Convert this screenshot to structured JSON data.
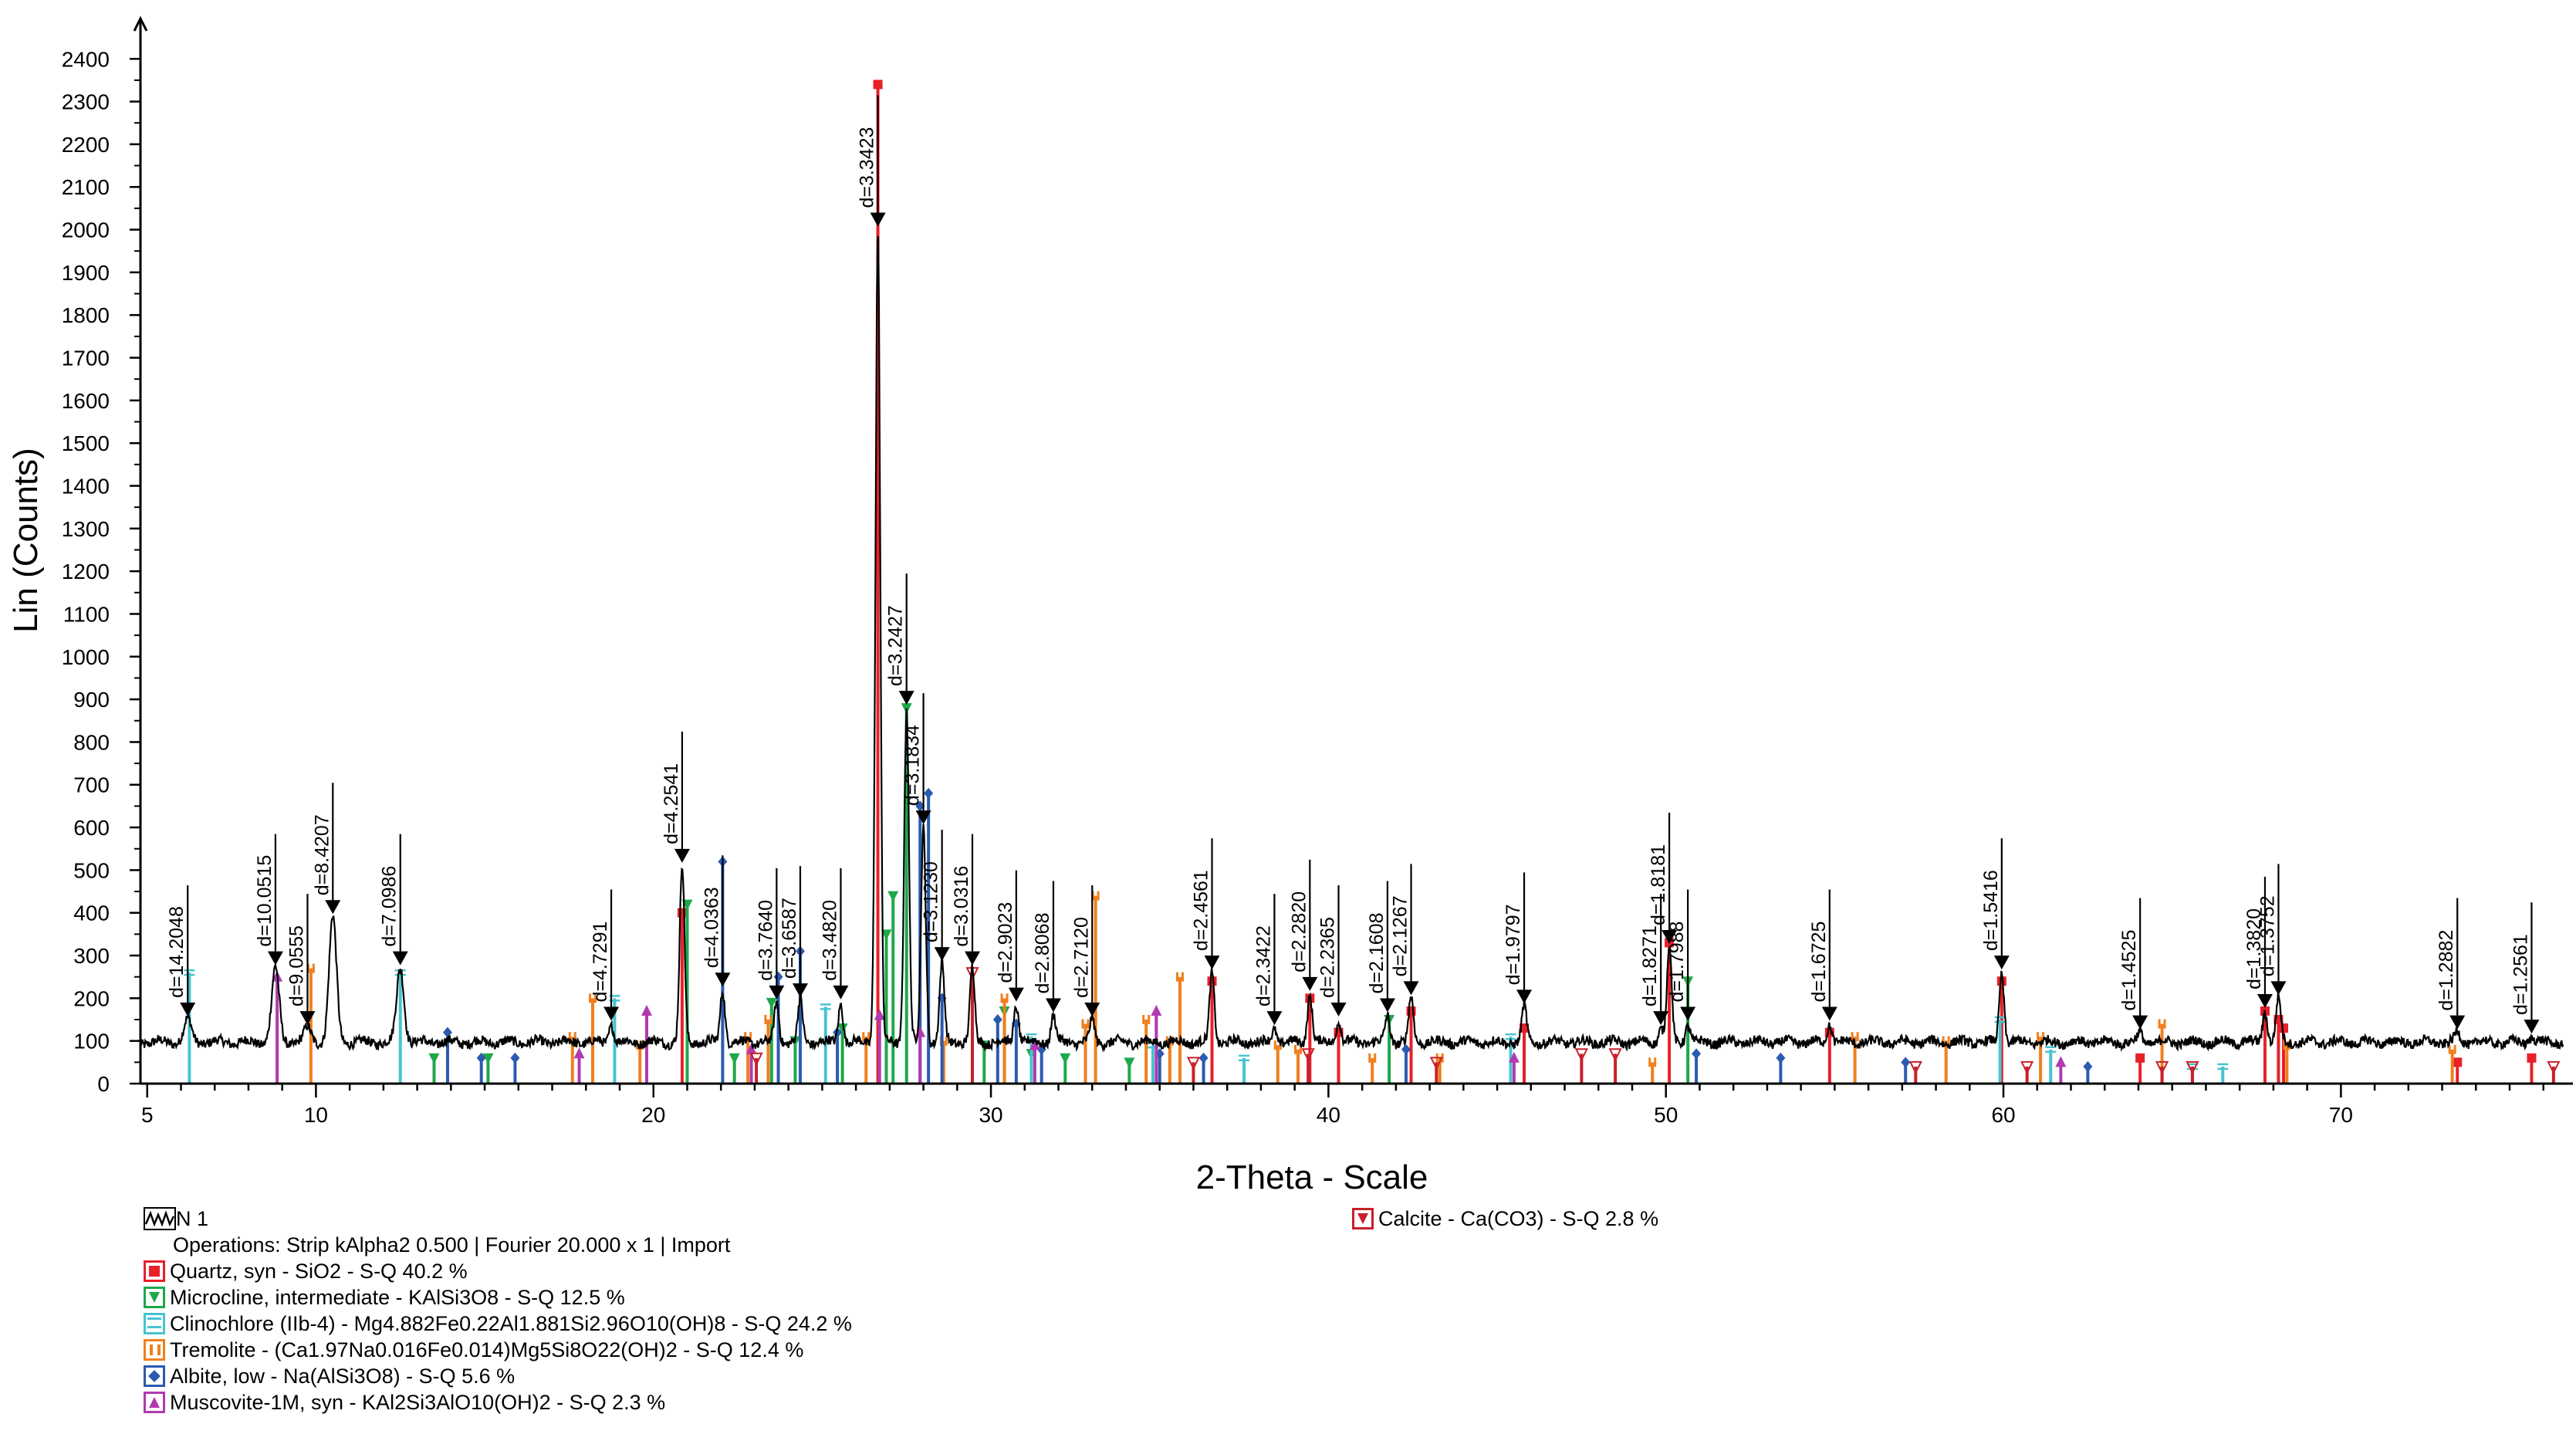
{
  "chart_data": {
    "type": "line",
    "xlabel": "2-Theta - Scale",
    "ylabel": "Lin (Counts)",
    "xlim": [
      4.8,
      76.6
    ],
    "ylim": [
      0,
      2480
    ],
    "x_ticks": [
      5,
      10,
      20,
      30,
      40,
      50,
      60,
      70
    ],
    "x_ticklabels": [
      "5",
      "10",
      "20",
      "30",
      "40",
      "50",
      "60",
      "70"
    ],
    "y_ticks": [
      0,
      100,
      200,
      300,
      400,
      500,
      600,
      700,
      800,
      900,
      1000,
      1100,
      1200,
      1300,
      1400,
      1500,
      1600,
      1700,
      1800,
      1900,
      2000,
      2100,
      2200,
      2300,
      2400
    ],
    "y_ticklabels": [
      "0",
      "100",
      "200",
      "300",
      "400",
      "500",
      "600",
      "700",
      "800",
      "900",
      "1000",
      "1100",
      "1200",
      "1300",
      "1400",
      "1500",
      "1600",
      "1700",
      "1800",
      "1900",
      "2000",
      "2100",
      "2200",
      "2300",
      "2400"
    ],
    "baseline_counts": 97,
    "series": [
      {
        "name": "N 1",
        "color": "#000000"
      }
    ],
    "peaks": [
      {
        "x": 6.2,
        "y": 150,
        "d": "d=14.2048"
      },
      {
        "x": 8.8,
        "y": 270,
        "d": "d=10.0515"
      },
      {
        "x": 9.75,
        "y": 130,
        "d": "d=9.0555"
      },
      {
        "x": 10.5,
        "y": 390,
        "d": "d=8.4207"
      },
      {
        "x": 12.5,
        "y": 270,
        "d": "d=7.0986"
      },
      {
        "x": 18.75,
        "y": 140,
        "d": "d=4.7291"
      },
      {
        "x": 20.85,
        "y": 510,
        "d": "d=4.2541"
      },
      {
        "x": 22.05,
        "y": 220,
        "d": "d=4.0363"
      },
      {
        "x": 23.65,
        "y": 190,
        "d": "d=3.7640"
      },
      {
        "x": 24.35,
        "y": 195,
        "d": "d=3.6587"
      },
      {
        "x": 25.55,
        "y": 190,
        "d": "d=3.4820"
      },
      {
        "x": 26.65,
        "y": 2000,
        "d": "d=3.3423"
      },
      {
        "x": 27.5,
        "y": 880,
        "d": "d=3.2427"
      },
      {
        "x": 28.0,
        "y": 600,
        "d": "d=3.1834"
      },
      {
        "x": 28.55,
        "y": 280,
        "d": "d=3.1230"
      },
      {
        "x": 29.45,
        "y": 270,
        "d": "d=3.0316"
      },
      {
        "x": 30.75,
        "y": 185,
        "d": "d=2.9023"
      },
      {
        "x": 31.85,
        "y": 160,
        "d": "d=2.8068"
      },
      {
        "x": 33.0,
        "y": 150,
        "d": "d=2.7120"
      },
      {
        "x": 36.55,
        "y": 260,
        "d": "d=2.4561"
      },
      {
        "x": 38.4,
        "y": 130,
        "d": "d=2.3422"
      },
      {
        "x": 39.45,
        "y": 210,
        "d": "d=2.2820"
      },
      {
        "x": 40.3,
        "y": 150,
        "d": "d=2.2365"
      },
      {
        "x": 41.75,
        "y": 160,
        "d": "d=2.1608"
      },
      {
        "x": 42.45,
        "y": 200,
        "d": "d=2.1267"
      },
      {
        "x": 45.8,
        "y": 180,
        "d": "d=1.9797"
      },
      {
        "x": 49.85,
        "y": 130,
        "d": "d=1.8271"
      },
      {
        "x": 50.1,
        "y": 320,
        "d": "d=1.8181"
      },
      {
        "x": 50.65,
        "y": 140,
        "d": "d=1.7988"
      },
      {
        "x": 54.85,
        "y": 140,
        "d": "d=1.6725"
      },
      {
        "x": 59.95,
        "y": 260,
        "d": "d=1.5416"
      },
      {
        "x": 64.05,
        "y": 120,
        "d": "d=1.4525"
      },
      {
        "x": 67.75,
        "y": 170,
        "d": "d=1.3820"
      },
      {
        "x": 68.15,
        "y": 200,
        "d": "d=1.3752"
      },
      {
        "x": 73.45,
        "y": 120,
        "d": "d=1.2882"
      },
      {
        "x": 75.65,
        "y": 110,
        "d": "d=1.2561"
      }
    ],
    "reference_phases": [
      {
        "name": "Quartz, syn - SiO2 - S-Q 40.2 %",
        "color": "#e8202a",
        "marker": "square",
        "sticks": [
          [
            20.85,
            400
          ],
          [
            26.65,
            2340
          ],
          [
            36.55,
            240
          ],
          [
            39.45,
            200
          ],
          [
            40.3,
            120
          ],
          [
            42.45,
            170
          ],
          [
            45.8,
            130
          ],
          [
            50.1,
            330
          ],
          [
            54.85,
            120
          ],
          [
            59.95,
            240
          ],
          [
            64.05,
            60
          ],
          [
            67.75,
            170
          ],
          [
            68.15,
            150
          ],
          [
            68.3,
            130
          ],
          [
            73.45,
            50
          ],
          [
            75.65,
            60
          ]
        ]
      },
      {
        "name": "Microcline, intermediate - KAlSi3O8 - S-Q 12.5 %",
        "color": "#1ea84a",
        "marker": "tri-down",
        "sticks": [
          [
            13.5,
            60
          ],
          [
            15.1,
            60
          ],
          [
            21.0,
            420
          ],
          [
            22.4,
            60
          ],
          [
            23.5,
            190
          ],
          [
            24.2,
            100
          ],
          [
            25.6,
            130
          ],
          [
            26.9,
            350
          ],
          [
            27.1,
            440
          ],
          [
            27.5,
            880
          ],
          [
            29.8,
            90
          ],
          [
            30.4,
            170
          ],
          [
            31.2,
            70
          ],
          [
            32.2,
            60
          ],
          [
            34.1,
            50
          ],
          [
            41.8,
            150
          ],
          [
            50.65,
            240
          ]
        ]
      },
      {
        "name": "Clinochlore (IIb-4) - Mg4.882Fe0.22Al1.881Si2.96O10(OH)8 - S-Q 24.2 %",
        "color": "#46c4d0",
        "marker": "lines",
        "sticks": [
          [
            6.25,
            260
          ],
          [
            12.5,
            260
          ],
          [
            18.85,
            200
          ],
          [
            25.1,
            180
          ],
          [
            31.2,
            110
          ],
          [
            34.8,
            90
          ],
          [
            37.5,
            60
          ],
          [
            45.4,
            110
          ],
          [
            59.9,
            150
          ],
          [
            61.4,
            80
          ],
          [
            65.6,
            40
          ],
          [
            66.5,
            40
          ]
        ]
      },
      {
        "name": "Tremolite - (Ca1.97Na0.016Fe0.014)Mg5Si8O22(OH)2 - S-Q 12.4 %",
        "color": "#f07f1c",
        "marker": "bars",
        "sticks": [
          [
            9.85,
            270
          ],
          [
            17.6,
            110
          ],
          [
            18.2,
            200
          ],
          [
            19.6,
            90
          ],
          [
            22.8,
            110
          ],
          [
            23.4,
            150
          ],
          [
            26.3,
            110
          ],
          [
            28.6,
            100
          ],
          [
            30.4,
            200
          ],
          [
            32.8,
            140
          ],
          [
            33.1,
            440
          ],
          [
            34.6,
            150
          ],
          [
            35.3,
            100
          ],
          [
            35.6,
            250
          ],
          [
            38.5,
            90
          ],
          [
            39.1,
            80
          ],
          [
            41.3,
            60
          ],
          [
            43.3,
            60
          ],
          [
            49.6,
            50
          ],
          [
            55.6,
            110
          ],
          [
            58.3,
            100
          ],
          [
            61.1,
            110
          ],
          [
            64.7,
            140
          ],
          [
            68.4,
            90
          ],
          [
            73.3,
            80
          ]
        ]
      },
      {
        "name": "Albite, low - Na(AlSi3O8) - S-Q 5.6 %",
        "color": "#2b5bb0",
        "marker": "diamond",
        "sticks": [
          [
            13.9,
            120
          ],
          [
            14.9,
            60
          ],
          [
            15.9,
            60
          ],
          [
            22.05,
            520
          ],
          [
            23.7,
            250
          ],
          [
            24.35,
            310
          ],
          [
            25.45,
            120
          ],
          [
            27.9,
            650
          ],
          [
            28.15,
            680
          ],
          [
            28.55,
            200
          ],
          [
            30.2,
            150
          ],
          [
            30.75,
            140
          ],
          [
            31.5,
            80
          ],
          [
            35.0,
            70
          ],
          [
            36.3,
            60
          ],
          [
            42.3,
            80
          ],
          [
            50.9,
            70
          ],
          [
            53.4,
            60
          ],
          [
            57.1,
            50
          ],
          [
            62.5,
            40
          ]
        ]
      },
      {
        "name": "Muscovite-1M, syn - KAl2Si3AlO10(OH)2 - S-Q 2.3 %",
        "color": "#b03ab0",
        "marker": "tri-up",
        "sticks": [
          [
            8.85,
            250
          ],
          [
            17.8,
            70
          ],
          [
            19.8,
            170
          ],
          [
            22.9,
            80
          ],
          [
            26.7,
            160
          ],
          [
            27.9,
            120
          ],
          [
            31.3,
            90
          ],
          [
            34.9,
            170
          ],
          [
            45.5,
            60
          ],
          [
            61.7,
            50
          ]
        ]
      },
      {
        "name": "Calcite - Ca(CO3) - S-Q 2.8 %",
        "color": "#c8202a",
        "marker": "tri-down-open",
        "sticks": [
          [
            23.05,
            60
          ],
          [
            29.45,
            260
          ],
          [
            36.0,
            50
          ],
          [
            39.4,
            70
          ],
          [
            43.2,
            50
          ],
          [
            47.5,
            70
          ],
          [
            48.5,
            70
          ],
          [
            57.4,
            40
          ],
          [
            60.7,
            40
          ],
          [
            64.7,
            40
          ],
          [
            65.6,
            40
          ],
          [
            76.3,
            40
          ]
        ]
      }
    ]
  },
  "legend": {
    "series_label": "N 1",
    "operations": "Operations: Strip kAlpha2 0.500 | Fourier 20.000 x 1 | Import"
  }
}
